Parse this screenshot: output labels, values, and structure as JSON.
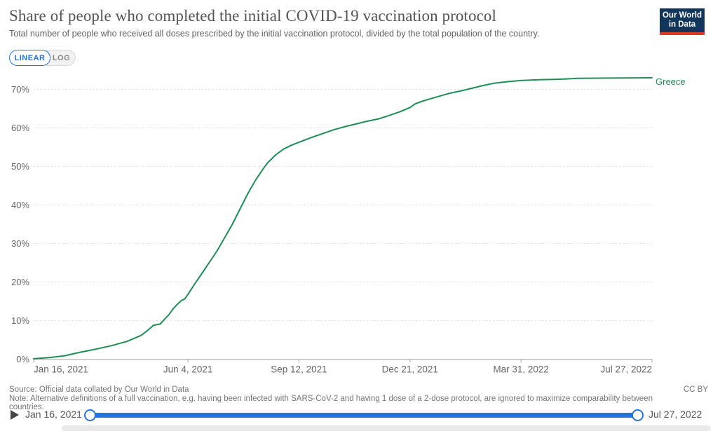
{
  "header": {
    "title": "Share of people who completed the initial COVID-19 vaccination protocol",
    "subtitle": "Total number of people who received all doses prescribed by the initial vaccination protocol, divided by the total population of the country.",
    "logo_line1": "Our World",
    "logo_line2": "in Data",
    "logo_bg": "#12355b",
    "logo_accent": "#e0362c"
  },
  "controls": {
    "linear_label": "LINEAR",
    "log_label": "LOG",
    "active_scale": "LINEAR",
    "accent_blue": "#2473e0"
  },
  "chart_data": {
    "type": "line",
    "title": "Share of people who completed the initial COVID-19 vaccination protocol",
    "xlabel": "",
    "ylabel": "",
    "y_format": "percent",
    "ylim": [
      0,
      73
    ],
    "grid": "horizontal-dashed",
    "legend_position": "end-of-line-label",
    "x_range_days": [
      0,
      557
    ],
    "x_ticks": [
      {
        "day": 0,
        "label": "Jan 16, 2021"
      },
      {
        "day": 139,
        "label": "Jun 4, 2021"
      },
      {
        "day": 239,
        "label": "Sep 12, 2021"
      },
      {
        "day": 339,
        "label": "Dec 21, 2021"
      },
      {
        "day": 439,
        "label": "Mar 31, 2022"
      },
      {
        "day": 557,
        "label": "Jul 27, 2022"
      }
    ],
    "y_ticks": [
      0,
      10,
      20,
      30,
      40,
      50,
      60,
      70
    ],
    "series": [
      {
        "name": "Greece",
        "color": "#1d8e53",
        "points_format": "[days_since_2021_01_16, percent_fully_vaccinated]",
        "points": [
          [
            0,
            0.1
          ],
          [
            14,
            0.4
          ],
          [
            28,
            0.9
          ],
          [
            42,
            1.8
          ],
          [
            56,
            2.6
          ],
          [
            70,
            3.5
          ],
          [
            84,
            4.6
          ],
          [
            97,
            6.2
          ],
          [
            104,
            7.8
          ],
          [
            108,
            8.8
          ],
          [
            114,
            9.1
          ],
          [
            118,
            10.4
          ],
          [
            122,
            11.6
          ],
          [
            126,
            13.2
          ],
          [
            130,
            14.4
          ],
          [
            133,
            15.2
          ],
          [
            136,
            15.6
          ],
          [
            139,
            16.8
          ],
          [
            145,
            19.5
          ],
          [
            151,
            22
          ],
          [
            158,
            25
          ],
          [
            165,
            28
          ],
          [
            172,
            31.5
          ],
          [
            179,
            35
          ],
          [
            186,
            39
          ],
          [
            193,
            43
          ],
          [
            200,
            46.5
          ],
          [
            207,
            49.5
          ],
          [
            211,
            51
          ],
          [
            218,
            53
          ],
          [
            225,
            54.5
          ],
          [
            232,
            55.5
          ],
          [
            239,
            56.3
          ],
          [
            250,
            57.5
          ],
          [
            260,
            58.5
          ],
          [
            270,
            59.5
          ],
          [
            280,
            60.3
          ],
          [
            290,
            61
          ],
          [
            300,
            61.7
          ],
          [
            310,
            62.3
          ],
          [
            320,
            63.2
          ],
          [
            330,
            64.2
          ],
          [
            339,
            65.3
          ],
          [
            344,
            66.3
          ],
          [
            350,
            66.9
          ],
          [
            358,
            67.6
          ],
          [
            365,
            68.2
          ],
          [
            375,
            69
          ],
          [
            385,
            69.6
          ],
          [
            395,
            70.3
          ],
          [
            405,
            71
          ],
          [
            415,
            71.6
          ],
          [
            427,
            72
          ],
          [
            439,
            72.3
          ],
          [
            455,
            72.5
          ],
          [
            470,
            72.6
          ],
          [
            480,
            72.7
          ],
          [
            490,
            72.85
          ],
          [
            510,
            72.9
          ],
          [
            530,
            72.95
          ],
          [
            557,
            73
          ]
        ]
      }
    ]
  },
  "footer": {
    "source": "Source: Official data collated by Our World in Data",
    "note": "Note: Alternative definitions of a full vaccination, e.g. having been infected with SARS-CoV-2 and having 1 dose of a 2-dose protocol, are ignored to maximize comparability between countries.",
    "license": "CC BY"
  },
  "timeline": {
    "start_label": "Jan 16, 2021",
    "end_label": "Jul 27, 2022",
    "track_color": "#2473e0"
  }
}
